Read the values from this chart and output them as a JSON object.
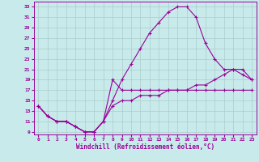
{
  "xlabel": "Windchill (Refroidissement éolien,°C)",
  "bg_color": "#c8eaea",
  "line_color": "#990099",
  "grid_color": "#aacccc",
  "xlim": [
    -0.5,
    23.5
  ],
  "ylim": [
    8.5,
    34
  ],
  "xticks": [
    0,
    1,
    2,
    3,
    4,
    5,
    6,
    7,
    8,
    9,
    10,
    11,
    12,
    13,
    14,
    15,
    16,
    17,
    18,
    19,
    20,
    21,
    22,
    23
  ],
  "yticks": [
    9,
    11,
    13,
    15,
    17,
    19,
    21,
    23,
    25,
    27,
    29,
    31,
    33
  ],
  "line1_x": [
    0,
    1,
    2,
    3,
    4,
    5,
    6,
    7,
    8,
    9,
    10,
    11,
    12,
    13,
    14,
    15,
    16,
    17,
    18,
    19,
    20,
    21,
    22,
    23
  ],
  "line1_y": [
    14,
    12,
    11,
    11,
    10,
    9,
    9,
    11,
    15,
    19,
    22,
    25,
    28,
    30,
    32,
    33,
    33,
    31,
    26,
    23,
    21,
    21,
    20,
    19
  ],
  "line2_x": [
    0,
    1,
    2,
    3,
    4,
    5,
    6,
    7,
    8,
    9,
    10,
    11,
    12,
    13,
    14,
    15,
    16,
    17,
    18,
    19,
    20,
    21,
    22,
    23
  ],
  "line2_y": [
    14,
    12,
    11,
    11,
    10,
    9,
    9,
    11,
    19,
    17,
    17,
    17,
    17,
    17,
    17,
    17,
    17,
    17,
    17,
    17,
    17,
    17,
    17,
    17
  ],
  "line3_x": [
    0,
    1,
    2,
    3,
    4,
    5,
    6,
    7,
    8,
    9,
    10,
    11,
    12,
    13,
    14,
    15,
    16,
    17,
    18,
    19,
    20,
    21,
    22,
    23
  ],
  "line3_y": [
    14,
    12,
    11,
    11,
    10,
    9,
    9,
    11,
    14,
    15,
    15,
    16,
    16,
    16,
    17,
    17,
    17,
    18,
    18,
    19,
    20,
    21,
    21,
    19
  ]
}
